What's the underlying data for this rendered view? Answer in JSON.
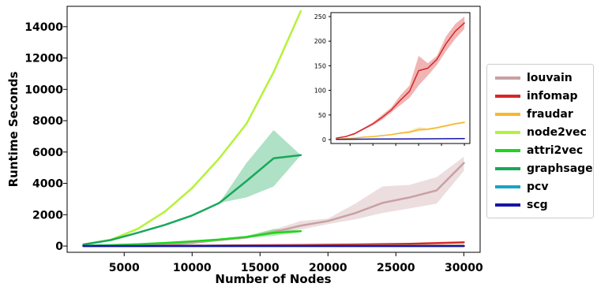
{
  "chart_data": {
    "type": "line",
    "title": "",
    "xlabel": "Number of Nodes",
    "ylabel": "Runtime Seconds",
    "xlim": [
      800,
      31200
    ],
    "ylim": [
      -400,
      15300
    ],
    "x_ticks": [
      5000,
      10000,
      15000,
      20000,
      25000,
      30000
    ],
    "x_tick_labels": [
      "5000",
      "10000",
      "15000",
      "20000",
      "25000",
      "30000"
    ],
    "y_ticks": [
      0,
      2000,
      4000,
      6000,
      8000,
      10000,
      12000,
      14000
    ],
    "y_tick_labels": [
      "0",
      "2000",
      "4000",
      "6000",
      "8000",
      "10000",
      "12000",
      "14000"
    ],
    "grid": false,
    "legend_position": "outside-right",
    "series": [
      {
        "name": "louvain",
        "color": "#c9a0a4",
        "x": [
          2000,
          4000,
          6000,
          8000,
          10000,
          12000,
          14000,
          16000,
          18000,
          20000,
          22000,
          24000,
          26000,
          28000,
          30000
        ],
        "y": [
          5,
          15,
          40,
          90,
          200,
          380,
          550,
          900,
          1300,
          1600,
          2100,
          2750,
          3100,
          3550,
          5300
        ],
        "band_low": [
          5,
          15,
          35,
          80,
          170,
          330,
          470,
          750,
          1050,
          1400,
          1700,
          2100,
          2400,
          2700,
          4800
        ],
        "band_high": [
          5,
          15,
          45,
          100,
          230,
          430,
          630,
          1050,
          1600,
          1750,
          2700,
          3800,
          3900,
          4400,
          5700
        ]
      },
      {
        "name": "infomap",
        "color": "#d62728",
        "x": [
          2000,
          6000,
          10000,
          14000,
          18000,
          22000,
          26000,
          30000
        ],
        "y": [
          3,
          15,
          30,
          50,
          70,
          100,
          140,
          235
        ],
        "band_low": [
          3,
          14,
          28,
          46,
          64,
          90,
          125,
          215
        ],
        "band_high": [
          3,
          16,
          32,
          55,
          78,
          115,
          160,
          255
        ]
      },
      {
        "name": "fraudar",
        "color": "#f5b82e",
        "x": [
          2000,
          10000,
          20000,
          30000
        ],
        "y": [
          1,
          8,
          20,
          35
        ],
        "band_low": [
          1,
          7,
          18,
          32
        ],
        "band_high": [
          1,
          9,
          23,
          38
        ]
      },
      {
        "name": "node2vec",
        "color": "#b5f23a",
        "x": [
          2000,
          4000,
          6000,
          8000,
          10000,
          12000,
          14000,
          16000,
          18000
        ],
        "y": [
          100,
          400,
          1100,
          2200,
          3700,
          5600,
          7800,
          11100,
          15000
        ],
        "band_low": [
          100,
          400,
          1100,
          2200,
          3700,
          5600,
          7800,
          11100,
          15000
        ],
        "band_high": [
          100,
          400,
          1100,
          2200,
          3700,
          5600,
          7800,
          11100,
          15000
        ]
      },
      {
        "name": "attri2vec",
        "color": "#1fd41f",
        "x": [
          2000,
          4000,
          6000,
          8000,
          10000,
          12000,
          14000,
          16000,
          18000
        ],
        "y": [
          20,
          60,
          120,
          200,
          300,
          420,
          580,
          850,
          950
        ],
        "band_low": [
          20,
          55,
          110,
          180,
          270,
          380,
          520,
          650,
          900
        ],
        "band_high": [
          20,
          65,
          130,
          220,
          330,
          460,
          640,
          1100,
          1000
        ]
      },
      {
        "name": "graphsage",
        "color": "#18a85a",
        "x": [
          2000,
          4000,
          6000,
          8000,
          10000,
          12000,
          14000,
          16000,
          18000
        ],
        "y": [
          100,
          380,
          850,
          1350,
          1950,
          2750,
          4150,
          5600,
          5800
        ],
        "band_low": [
          100,
          380,
          850,
          1350,
          1950,
          2750,
          3100,
          3800,
          5800
        ],
        "band_high": [
          100,
          380,
          850,
          1350,
          1950,
          2750,
          5300,
          7400,
          5800
        ]
      },
      {
        "name": "pcv",
        "color": "#19a3c6",
        "x": [
          2000,
          30000
        ],
        "y": [
          1,
          2
        ],
        "band_low": [
          1,
          2
        ],
        "band_high": [
          1,
          2
        ]
      },
      {
        "name": "scg",
        "color": "#1515a8",
        "x": [
          2000,
          10000,
          20000,
          30000
        ],
        "y": [
          0.5,
          1,
          1.5,
          2
        ],
        "band_low": [
          0.5,
          1,
          1.5,
          2
        ],
        "band_high": [
          0.5,
          1,
          1.5,
          2
        ]
      }
    ],
    "inset": {
      "xlim": [
        800,
        31200
      ],
      "ylim": [
        -8,
        258
      ],
      "x_ticks": [
        5000,
        10000,
        15000,
        20000,
        25000,
        30000
      ],
      "y_ticks": [
        0,
        50,
        100,
        150,
        200,
        250
      ],
      "y_tick_labels": [
        "0",
        "50",
        "100",
        "150",
        "200",
        "250"
      ],
      "series": [
        {
          "name": "infomap",
          "color": "#d62728",
          "x": [
            2000,
            4000,
            6000,
            8000,
            10000,
            12000,
            14000,
            16000,
            18000,
            20000,
            22000,
            24000,
            26000,
            28000,
            30000
          ],
          "y": [
            3,
            6,
            12,
            22,
            32,
            45,
            60,
            80,
            98,
            140,
            145,
            163,
            195,
            220,
            237
          ],
          "band_low": [
            3,
            5,
            10,
            20,
            29,
            40,
            55,
            70,
            85,
            110,
            130,
            152,
            180,
            205,
            225
          ],
          "band_high": [
            3,
            7,
            14,
            24,
            35,
            50,
            65,
            90,
            110,
            170,
            155,
            170,
            210,
            235,
            250
          ]
        },
        {
          "name": "fraudar",
          "color": "#f5b82e",
          "x": [
            2000,
            4000,
            6000,
            8000,
            10000,
            12000,
            14000,
            16000,
            18000,
            20000,
            22000,
            24000,
            26000,
            28000,
            30000
          ],
          "y": [
            1,
            2,
            3,
            5,
            6,
            8,
            10,
            13,
            15,
            20,
            21,
            24,
            28,
            32,
            35
          ],
          "band_low": [
            1,
            2,
            3,
            4,
            5,
            7,
            9,
            11,
            13,
            17,
            19,
            22,
            26,
            30,
            33
          ],
          "band_high": [
            1,
            2,
            3,
            6,
            7,
            9,
            11,
            15,
            18,
            25,
            23,
            26,
            30,
            34,
            37
          ]
        },
        {
          "name": "scg",
          "color": "#1515a8",
          "x": [
            2000,
            10000,
            20000,
            30000
          ],
          "y": [
            0.5,
            1,
            1.5,
            2
          ],
          "band_low": [
            0.5,
            1,
            1.5,
            2
          ],
          "band_high": [
            0.5,
            1,
            1.5,
            2
          ]
        }
      ]
    }
  }
}
